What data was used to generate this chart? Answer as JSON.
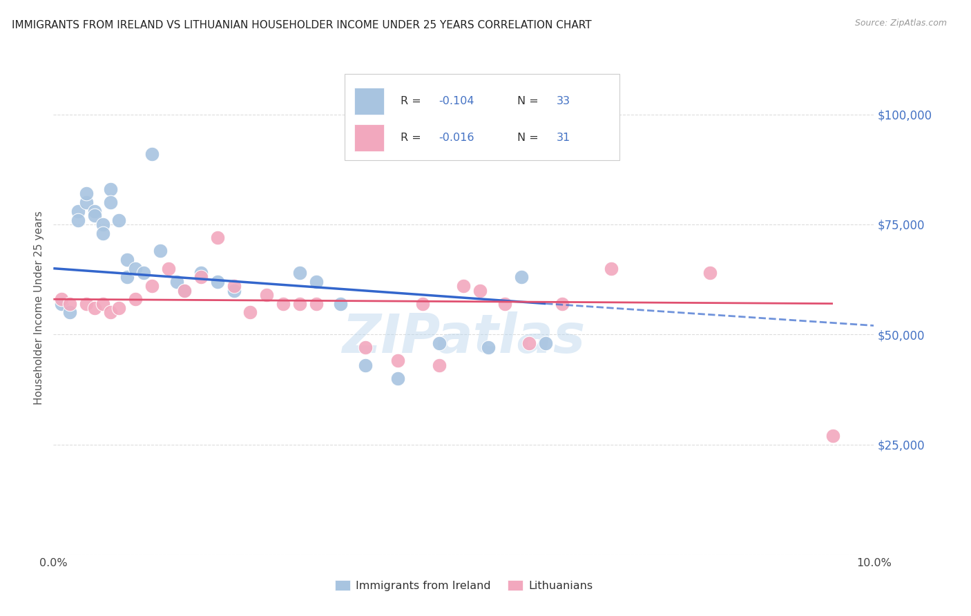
{
  "title": "IMMIGRANTS FROM IRELAND VS LITHUANIAN HOUSEHOLDER INCOME UNDER 25 YEARS CORRELATION CHART",
  "source": "Source: ZipAtlas.com",
  "ylabel": "Householder Income Under 25 years",
  "xlim": [
    0,
    0.1
  ],
  "ylim": [
    0,
    112000
  ],
  "ytick_right_labels": [
    "$100,000",
    "$75,000",
    "$50,000",
    "$25,000"
  ],
  "ytick_right_values": [
    100000,
    75000,
    50000,
    25000
  ],
  "legend_bottom1": "Immigrants from Ireland",
  "legend_bottom2": "Lithuanians",
  "ireland_color": "#a8c4e0",
  "lithuanian_color": "#f2a8be",
  "background_color": "#ffffff",
  "grid_color": "#dddddd",
  "watermark": "ZIPatlas",
  "ireland_x": [
    0.001,
    0.002,
    0.003,
    0.003,
    0.004,
    0.004,
    0.005,
    0.005,
    0.006,
    0.006,
    0.007,
    0.007,
    0.008,
    0.009,
    0.009,
    0.01,
    0.011,
    0.012,
    0.013,
    0.015,
    0.016,
    0.018,
    0.02,
    0.022,
    0.03,
    0.032,
    0.035,
    0.038,
    0.042,
    0.047,
    0.053,
    0.057,
    0.06
  ],
  "ireland_y": [
    57000,
    55000,
    78000,
    76000,
    80000,
    82000,
    78000,
    77000,
    75000,
    73000,
    83000,
    80000,
    76000,
    67000,
    63000,
    65000,
    64000,
    91000,
    69000,
    62000,
    60000,
    64000,
    62000,
    60000,
    64000,
    62000,
    57000,
    43000,
    40000,
    48000,
    47000,
    63000,
    48000
  ],
  "lithuanian_x": [
    0.001,
    0.002,
    0.004,
    0.005,
    0.006,
    0.007,
    0.008,
    0.01,
    0.012,
    0.014,
    0.016,
    0.018,
    0.02,
    0.022,
    0.024,
    0.026,
    0.028,
    0.03,
    0.032,
    0.038,
    0.042,
    0.045,
    0.047,
    0.05,
    0.052,
    0.055,
    0.058,
    0.062,
    0.068,
    0.08,
    0.095
  ],
  "lithuanian_y": [
    58000,
    57000,
    57000,
    56000,
    57000,
    55000,
    56000,
    58000,
    61000,
    65000,
    60000,
    63000,
    72000,
    61000,
    55000,
    59000,
    57000,
    57000,
    57000,
    47000,
    44000,
    57000,
    43000,
    61000,
    60000,
    57000,
    48000,
    57000,
    65000,
    64000,
    27000
  ],
  "line_blue_x0": 0.0,
  "line_blue_y0": 65000,
  "line_blue_x1": 0.06,
  "line_blue_y1": 57000,
  "line_blue_dash_x1": 0.1,
  "line_blue_dash_y1": 52000,
  "line_pink_x0": 0.0,
  "line_pink_y0": 58000,
  "line_pink_x1": 0.095,
  "line_pink_y1": 57000
}
